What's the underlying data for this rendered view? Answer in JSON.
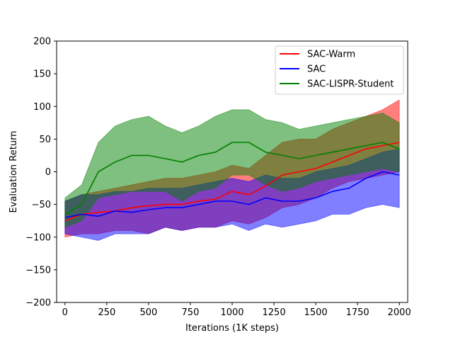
{
  "chart_data": {
    "type": "line",
    "title": "",
    "xlabel": "Iterations (1K steps)",
    "ylabel": "Evaluation Return",
    "xlim": [
      -50,
      2050
    ],
    "ylim": [
      -200,
      200
    ],
    "xticks": [
      0,
      250,
      500,
      750,
      1000,
      1250,
      1500,
      1750,
      2000
    ],
    "yticks": [
      -200,
      -150,
      -100,
      -50,
      0,
      50,
      100,
      150,
      200
    ],
    "grid": false,
    "legend_position": "upper-right",
    "x": [
      0,
      100,
      200,
      300,
      400,
      500,
      600,
      700,
      800,
      900,
      1000,
      1100,
      1200,
      1300,
      1400,
      1500,
      1600,
      1700,
      1800,
      1900,
      2000
    ],
    "series": [
      {
        "name": "SAC-Warm",
        "color": "#ff0000",
        "values": [
          -75,
          -65,
          -62,
          -60,
          -55,
          -52,
          -50,
          -50,
          -45,
          -42,
          -30,
          -35,
          -22,
          -5,
          0,
          5,
          15,
          25,
          35,
          40,
          45
        ],
        "lower": [
          -100,
          -95,
          -95,
          -90,
          -90,
          -95,
          -85,
          -90,
          -85,
          -85,
          -75,
          -80,
          -70,
          -55,
          -50,
          -40,
          -25,
          -15,
          -10,
          -5,
          0
        ],
        "upper": [
          -45,
          -35,
          -30,
          -25,
          -20,
          -15,
          -10,
          -10,
          -5,
          0,
          10,
          5,
          25,
          45,
          50,
          50,
          65,
          75,
          85,
          95,
          110
        ]
      },
      {
        "name": "SAC",
        "color": "#0000ff",
        "values": [
          -70,
          -65,
          -68,
          -60,
          -62,
          -58,
          -55,
          -55,
          -50,
          -45,
          -45,
          -50,
          -40,
          -45,
          -45,
          -40,
          -30,
          -25,
          -10,
          0,
          -5
        ],
        "lower": [
          -95,
          -100,
          -105,
          -95,
          -95,
          -95,
          -85,
          -90,
          -85,
          -85,
          -80,
          -90,
          -80,
          -85,
          -80,
          -75,
          -65,
          -65,
          -55,
          -50,
          -55
        ],
        "upper": [
          -45,
          -35,
          -35,
          -30,
          -30,
          -25,
          -25,
          -25,
          -20,
          -15,
          -10,
          -15,
          -5,
          -10,
          -10,
          0,
          5,
          10,
          20,
          30,
          35
        ]
      },
      {
        "name": "SAC-LISPR-Student",
        "color": "#008000",
        "values": [
          -65,
          -50,
          0,
          15,
          25,
          25,
          20,
          15,
          25,
          30,
          45,
          45,
          30,
          25,
          20,
          25,
          30,
          35,
          40,
          45,
          35
        ],
        "lower": [
          -85,
          -75,
          -40,
          -35,
          -30,
          -30,
          -30,
          -45,
          -30,
          -25,
          -5,
          -5,
          -20,
          -30,
          -25,
          -15,
          -10,
          -5,
          0,
          5,
          0
        ],
        "upper": [
          -40,
          -20,
          45,
          70,
          80,
          85,
          70,
          60,
          70,
          85,
          95,
          95,
          80,
          75,
          65,
          70,
          75,
          80,
          85,
          90,
          75
        ]
      }
    ]
  }
}
